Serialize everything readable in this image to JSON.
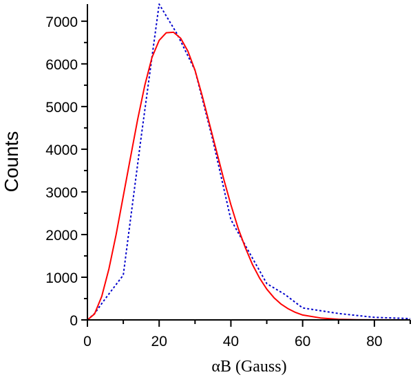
{
  "chart_data": {
    "type": "line",
    "title": "",
    "xlabel": "αB (Gauss)",
    "ylabel": "Counts",
    "xlim": [
      0,
      90
    ],
    "ylim": [
      0,
      7400
    ],
    "x_ticks": [
      0,
      20,
      40,
      60,
      80
    ],
    "y_ticks": [
      0,
      1000,
      2000,
      3000,
      4000,
      5000,
      6000,
      7000
    ],
    "x_tick_labels": [
      "0",
      "20",
      "40",
      "60",
      "80"
    ],
    "y_tick_labels": [
      "0",
      "1000",
      "2000",
      "3000",
      "4000",
      "5000",
      "6000",
      "7000"
    ],
    "grid": false,
    "legend": "none",
    "series": [
      {
        "style": "dotted",
        "color": "#0000cc",
        "x": [
          0,
          2,
          5,
          10,
          15,
          20,
          25,
          30,
          35,
          40,
          45,
          50,
          55,
          60,
          70,
          80,
          90
        ],
        "y": [
          0,
          150,
          500,
          1050,
          4300,
          7400,
          6700,
          5850,
          4200,
          2350,
          1600,
          850,
          600,
          280,
          150,
          60,
          30
        ]
      },
      {
        "style": "solid",
        "color": "#ff0000",
        "x": [
          0,
          2,
          4,
          6,
          8,
          10,
          12,
          14,
          16,
          18,
          20,
          22,
          24,
          26,
          28,
          30,
          32,
          34,
          36,
          38,
          40,
          42,
          44,
          46,
          48,
          50,
          52,
          54,
          56,
          58,
          60,
          65,
          70,
          75,
          80,
          90
        ],
        "y": [
          0,
          140,
          550,
          1200,
          2000,
          2900,
          3800,
          4700,
          5500,
          6150,
          6550,
          6730,
          6740,
          6600,
          6300,
          5850,
          5250,
          4600,
          3950,
          3300,
          2700,
          2150,
          1700,
          1300,
          980,
          720,
          520,
          370,
          260,
          175,
          115,
          45,
          15,
          5,
          2,
          0
        ]
      }
    ]
  }
}
